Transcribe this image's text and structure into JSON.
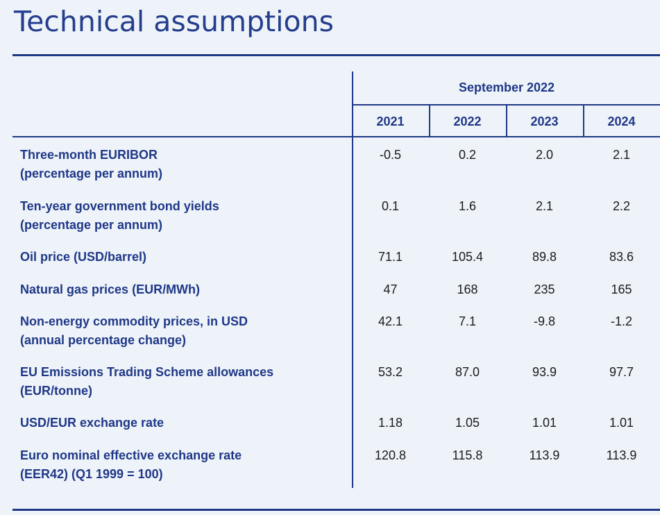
{
  "title": "Technical assumptions",
  "table": {
    "group_header": "September 2022",
    "years": [
      "2021",
      "2022",
      "2023",
      "2024"
    ],
    "rows": [
      {
        "label": "Three-month EURIBOR",
        "sub": "(percentage per annum)",
        "values": [
          "-0.5",
          "0.2",
          "2.0",
          "2.1"
        ]
      },
      {
        "label": "Ten-year government bond yields",
        "sub": "(percentage per annum)",
        "values": [
          "0.1",
          "1.6",
          "2.1",
          "2.2"
        ]
      },
      {
        "label": "Oil price (USD/barrel)",
        "sub": "",
        "values": [
          "71.1",
          "105.4",
          "89.8",
          "83.6"
        ]
      },
      {
        "label": "Natural gas prices (EUR/MWh)",
        "sub": "",
        "values": [
          "47",
          "168",
          "235",
          "165"
        ]
      },
      {
        "label": "Non-energy commodity prices, in USD",
        "sub": "(annual percentage change)",
        "values": [
          "42.1",
          "7.1",
          "-9.8",
          "-1.2"
        ]
      },
      {
        "label": "EU Emissions Trading Scheme allowances",
        "sub": "(EUR/tonne)",
        "values": [
          "53.2",
          "87.0",
          "93.9",
          "97.7"
        ]
      },
      {
        "label": "USD/EUR exchange rate",
        "sub": "",
        "values": [
          "1.18",
          "1.05",
          "1.01",
          "1.01"
        ]
      },
      {
        "label": "Euro nominal effective exchange rate",
        "sub": "(EER42) (Q1 1999 = 100)",
        "values": [
          "120.8",
          "115.8",
          "113.9",
          "113.9"
        ]
      }
    ]
  }
}
